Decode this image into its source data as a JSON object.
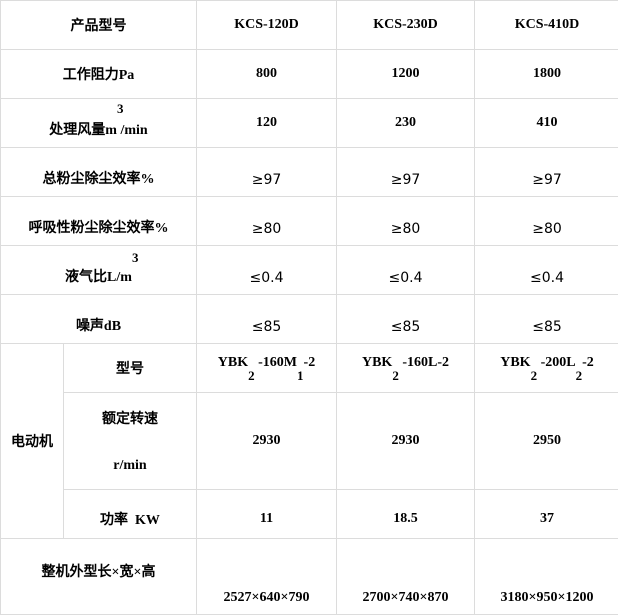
{
  "header": {
    "label": "产品型号",
    "models": [
      "KCS-120D",
      "KCS-230D",
      "KCS-410D"
    ]
  },
  "rows": [
    {
      "label": "工作阻力Pa",
      "values": [
        "800",
        "1200",
        "1800"
      ]
    },
    {
      "label": "处理风量m /min",
      "sup": "3",
      "values": [
        "120",
        "230",
        "410"
      ]
    },
    {
      "label": "总粉尘除尘效率%",
      "values": [
        "≥97",
        "≥97",
        "≥97"
      ]
    },
    {
      "label": "呼吸性粉尘除尘效率%",
      "values": [
        "≥80",
        "≥80",
        "≥80"
      ]
    },
    {
      "label": "液气比L/m",
      "sup": "3",
      "values": [
        "≤0.4",
        "≤0.4",
        "≤0.4"
      ]
    },
    {
      "label": "噪声dB",
      "values": [
        "≤85",
        "≤85",
        "≤85"
      ]
    }
  ],
  "motor": {
    "group_label": "电动机",
    "model": {
      "label": "型号",
      "values": [
        {
          "a": "YBK",
          "s1": "2",
          "b": "-160M",
          "s2": "1",
          "c": "-2"
        },
        {
          "a": "YBK",
          "s1": "2",
          "b": "-160L-2",
          "s2": "",
          "c": ""
        },
        {
          "a": "YBK",
          "s1": "2",
          "b": "-200L",
          "s2": "2",
          "c": "-2"
        }
      ]
    },
    "speed": {
      "label": "额定转速",
      "unit": "r/min",
      "values": [
        "2930",
        "2930",
        "2950"
      ]
    },
    "power": {
      "label": "功率  KW",
      "values": [
        "11",
        "18.5",
        "37"
      ]
    }
  },
  "dimensions": {
    "label": "整机外型长×宽×高",
    "values": [
      "2527×640×790",
      "2700×740×870",
      "3180×950×1200"
    ]
  }
}
